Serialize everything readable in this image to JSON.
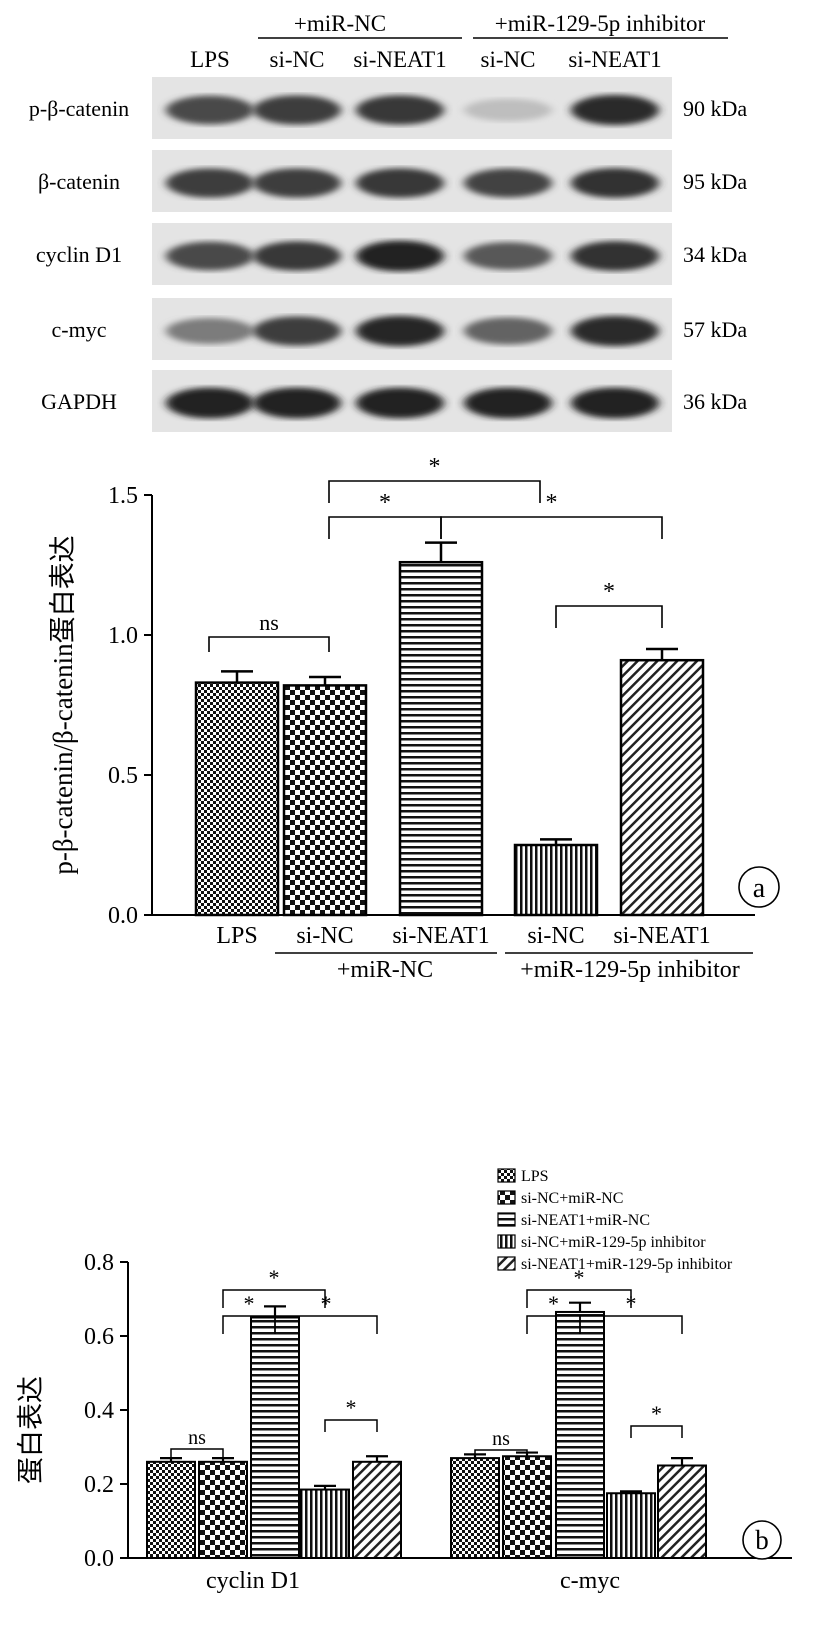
{
  "blot": {
    "header_groups": [
      "+miR-NC",
      "+miR-129-5p inhibitor"
    ],
    "lane_labels": [
      "LPS",
      "si-NC",
      "si-NEAT1",
      "si-NC",
      "si-NEAT1"
    ],
    "rows": [
      {
        "label": "p-β-catenin",
        "size": "90 kDa",
        "intensity": [
          0.72,
          0.78,
          0.8,
          0.2,
          0.85
        ]
      },
      {
        "label": "β-catenin",
        "size": "95 kDa",
        "intensity": [
          0.78,
          0.78,
          0.8,
          0.75,
          0.82
        ]
      },
      {
        "label": "cyclin D1",
        "size": "34 kDa",
        "intensity": [
          0.72,
          0.8,
          0.9,
          0.65,
          0.82
        ]
      },
      {
        "label": "c-myc",
        "size": "57 kDa",
        "intensity": [
          0.5,
          0.78,
          0.88,
          0.6,
          0.86
        ]
      },
      {
        "label": "GAPDH",
        "size": "36 kDa",
        "intensity": [
          0.9,
          0.9,
          0.9,
          0.9,
          0.9
        ]
      }
    ]
  },
  "chart_data": [
    {
      "type": "bar",
      "panel": "a",
      "ylabel": "p-β-catenin/β-catenin蛋白表达",
      "ylim": [
        0,
        1.5
      ],
      "yticks": [
        "0.0",
        "0.5",
        "1.0",
        "1.5"
      ],
      "categories": [
        "LPS",
        "si-NC",
        "si-NEAT1",
        "si-NC",
        "si-NEAT1"
      ],
      "group_labels": [
        "+miR-NC",
        "+miR-129-5p inhibitor"
      ],
      "values": [
        0.83,
        0.82,
        1.26,
        0.25,
        0.91
      ],
      "errors": [
        0.04,
        0.03,
        0.07,
        0.02,
        0.04
      ],
      "significance": [
        "ns",
        "*",
        "*",
        "*",
        "*"
      ]
    },
    {
      "type": "bar",
      "panel": "b",
      "ylabel": "蛋白表达",
      "ylim": [
        0,
        0.8
      ],
      "yticks": [
        "0.0",
        "0.2",
        "0.4",
        "0.6",
        "0.8"
      ],
      "categories": [
        "cyclin D1",
        "c-myc"
      ],
      "series": [
        {
          "name": "LPS",
          "values": [
            0.26,
            0.27
          ],
          "errors": [
            0.01,
            0.01
          ]
        },
        {
          "name": "si-NC+miR-NC",
          "values": [
            0.26,
            0.275
          ],
          "errors": [
            0.01,
            0.01
          ]
        },
        {
          "name": "si-NEAT1+miR-NC",
          "values": [
            0.65,
            0.665
          ],
          "errors": [
            0.03,
            0.025
          ]
        },
        {
          "name": "si-NC+miR-129-5p inhibitor",
          "values": [
            0.185,
            0.175
          ],
          "errors": [
            0.01,
            0.005
          ]
        },
        {
          "name": "si-NEAT1+miR-129-5p inhibitor",
          "values": [
            0.26,
            0.25
          ],
          "errors": [
            0.015,
            0.02
          ]
        }
      ],
      "significance": [
        "ns",
        "*",
        "*",
        "*",
        "*",
        "ns",
        "*",
        "*",
        "*",
        "*"
      ],
      "legend": "top-right"
    }
  ],
  "panel_badges": [
    "a",
    "b"
  ]
}
